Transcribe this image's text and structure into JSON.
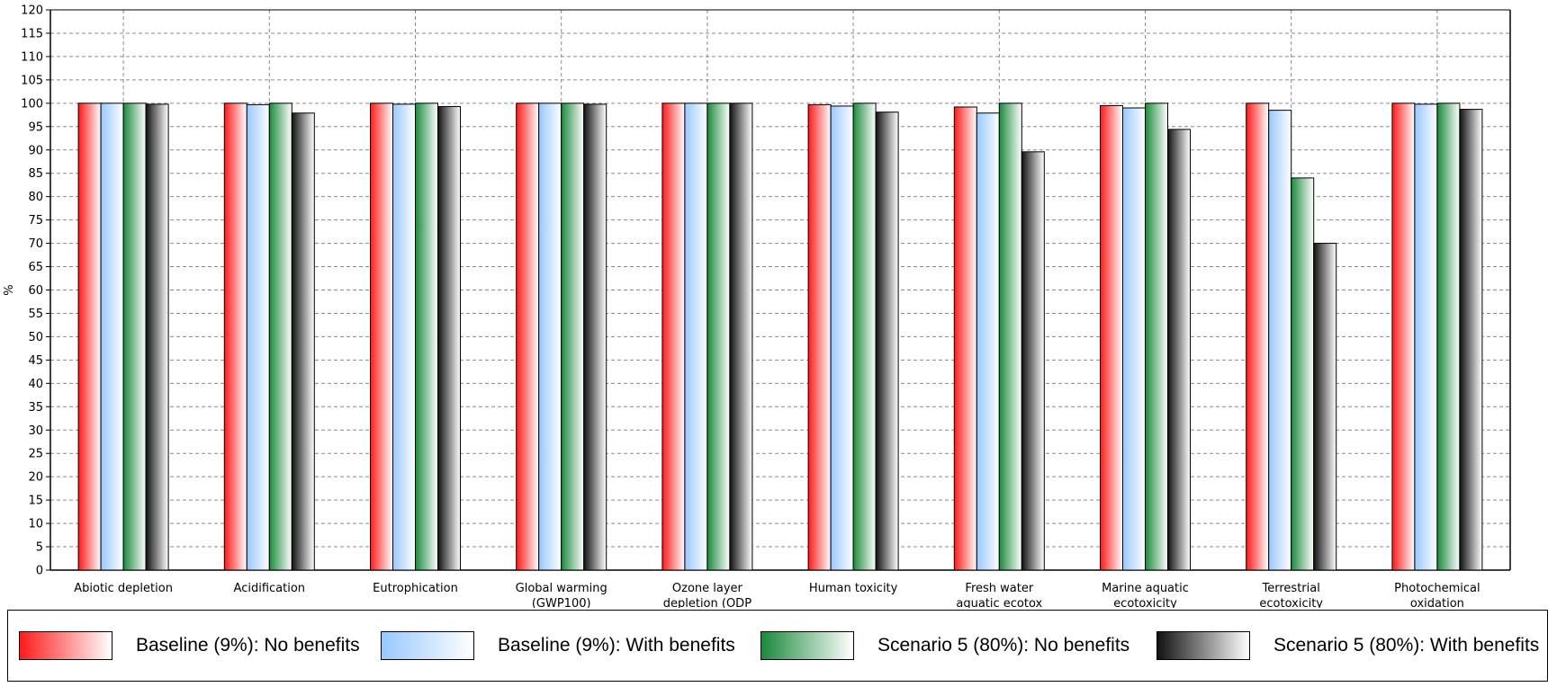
{
  "chart_data": {
    "type": "bar",
    "ylabel": "%",
    "xlabel": "",
    "ylim": [
      0,
      120
    ],
    "ytick_step": 5,
    "grid": true,
    "legend_position": "bottom",
    "categories": [
      [
        "Abiotic depletion"
      ],
      [
        "Acidification"
      ],
      [
        "Eutrophication"
      ],
      [
        "Global warming",
        "(GWP100)"
      ],
      [
        "Ozone layer",
        "depletion (ODP"
      ],
      [
        "Human toxicity"
      ],
      [
        "Fresh water",
        "aquatic ecotox"
      ],
      [
        "Marine aquatic",
        "ecotoxicity"
      ],
      [
        "Terrestrial",
        "ecotoxicity"
      ],
      [
        "Photochemical",
        "oxidation"
      ]
    ],
    "series": [
      {
        "name": "Baseline (9%): No benefits",
        "color": "#ff1a1a",
        "values": [
          100,
          100,
          100,
          100,
          100,
          99.7,
          99.2,
          99.5,
          100,
          100
        ]
      },
      {
        "name": "Baseline (9%): With benefits",
        "color": "#99c8ff",
        "values": [
          100,
          99.7,
          99.8,
          100,
          100,
          99.4,
          97.9,
          99.0,
          98.5,
          99.8
        ]
      },
      {
        "name": "Scenario 5 (80%): No benefits",
        "color": "#1a8a3c",
        "values": [
          100,
          100,
          100,
          100,
          100,
          100,
          100,
          100,
          84.0,
          100
        ]
      },
      {
        "name": "Scenario 5 (80%): With benefits",
        "color": "#111111",
        "values": [
          99.8,
          97.9,
          99.3,
          99.8,
          100,
          98.1,
          89.6,
          94.4,
          70.0,
          98.7
        ]
      }
    ]
  }
}
